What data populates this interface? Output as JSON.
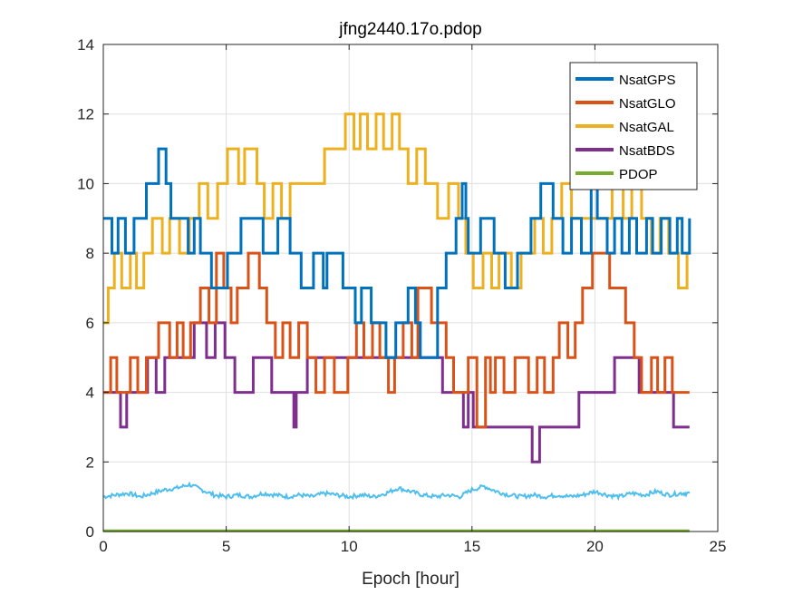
{
  "chart_data": {
    "type": "line",
    "title": "jfng2440.17o.pdop",
    "xlabel": "Epoch [hour]",
    "ylabel": "",
    "xlim": [
      0,
      25
    ],
    "ylim": [
      0,
      14
    ],
    "xticks": [
      0,
      5,
      10,
      15,
      20,
      25
    ],
    "yticks": [
      0,
      2,
      4,
      6,
      8,
      10,
      12,
      14
    ],
    "grid": true,
    "legend_position": "top-right",
    "series": [
      {
        "name": "NsatGPS",
        "color": "#0072BD",
        "style": "step",
        "x": [
          0,
          0.35,
          0.6,
          0.9,
          1.25,
          1.75,
          2.25,
          2.55,
          2.75,
          3.45,
          3.7,
          3.95,
          4.4,
          5.05,
          5.6,
          6.5,
          7.1,
          7.6,
          8.05,
          8.55,
          8.95,
          9.1,
          9.75,
          10.25,
          10.5,
          10.9,
          11.5,
          11.9,
          12.4,
          12.7,
          12.9,
          13.6,
          13.95,
          14.35,
          14.6,
          14.75,
          14.85,
          15.35,
          15.9,
          16.35,
          16.85,
          17.4,
          17.8,
          18.3,
          18.7,
          19.05,
          19.45,
          19.85,
          20.1,
          20.5,
          20.8,
          21.1,
          21.4,
          21.7,
          22.1,
          22.35,
          22.7,
          23.05,
          23.35,
          23.55,
          23.85
        ],
        "y": [
          9,
          8,
          9,
          8,
          9,
          10,
          11,
          10,
          9,
          8,
          9,
          8,
          7,
          8,
          9,
          8,
          9,
          8,
          7,
          8,
          7,
          8,
          7,
          6,
          7,
          6,
          5,
          6,
          7,
          6,
          5,
          7,
          8,
          9,
          10,
          9,
          8,
          9,
          8,
          7,
          8,
          9,
          10,
          9,
          8,
          9,
          8,
          10,
          9,
          8,
          9,
          8,
          9,
          8,
          9,
          8,
          9,
          8,
          9,
          8,
          9
        ]
      },
      {
        "name": "NsatGLO",
        "color": "#D95319",
        "style": "step",
        "x": [
          0,
          0.3,
          0.55,
          1.1,
          1.4,
          1.75,
          2.25,
          2.7,
          3.0,
          3.25,
          3.55,
          3.95,
          4.3,
          4.6,
          4.9,
          5.2,
          5.45,
          5.9,
          6.35,
          6.65,
          7.0,
          7.3,
          7.6,
          7.95,
          8.3,
          8.65,
          9.0,
          9.4,
          9.95,
          10.3,
          10.6,
          10.95,
          11.25,
          11.6,
          11.85,
          12.2,
          12.55,
          12.8,
          13.35,
          13.95,
          14.25,
          14.85,
          15.2,
          15.55,
          15.75,
          15.95,
          16.3,
          16.75,
          17.3,
          17.65,
          17.95,
          18.3,
          18.55,
          18.9,
          19.2,
          19.5,
          19.9,
          20.6,
          21.25,
          21.6,
          21.9,
          22.3,
          22.55,
          22.85,
          23.15,
          23.55
        ],
        "y": [
          4,
          5,
          4,
          5,
          4,
          5,
          6,
          5,
          6,
          5,
          6,
          7,
          6,
          8,
          7,
          6,
          7,
          8,
          7,
          6,
          5,
          6,
          5,
          6,
          5,
          4,
          5,
          4,
          5,
          6,
          5,
          6,
          5,
          4,
          5,
          6,
          5,
          7,
          6,
          5,
          4,
          5,
          3,
          5,
          4,
          5,
          4,
          5,
          4,
          5,
          4,
          5,
          6,
          5,
          6,
          7,
          8,
          7,
          6,
          5,
          4,
          5,
          4,
          5,
          4,
          4
        ]
      },
      {
        "name": "NsatGAL",
        "color": "#EDB120",
        "style": "step",
        "x": [
          0,
          0.2,
          0.45,
          0.75,
          1.1,
          1.35,
          1.65,
          2.0,
          2.4,
          2.7,
          3.1,
          3.5,
          3.9,
          4.25,
          4.65,
          5.05,
          5.5,
          5.75,
          6.25,
          6.55,
          6.9,
          7.25,
          7.6,
          7.95,
          8.4,
          9.0,
          9.55,
          9.85,
          10.2,
          10.45,
          10.75,
          11.1,
          11.4,
          11.75,
          12.05,
          12.4,
          12.75,
          13.1,
          13.6,
          14.05,
          14.45,
          14.75,
          15.05,
          15.45,
          15.8,
          16.1,
          16.6,
          17.0,
          17.55,
          17.9,
          18.25,
          18.65,
          19.05,
          19.6,
          20.2,
          20.7,
          21.15,
          21.5,
          21.9,
          22.3,
          22.65,
          23.0,
          23.4,
          23.75
        ],
        "y": [
          6,
          7,
          8,
          7,
          8,
          7,
          8,
          9,
          8,
          9,
          8,
          9,
          10,
          9,
          10,
          11,
          10,
          11,
          10,
          9,
          10,
          9,
          10,
          10,
          10,
          11,
          11,
          12,
          11,
          12,
          11,
          12,
          11,
          12,
          11,
          10,
          11,
          10,
          9,
          10,
          9,
          8,
          7,
          8,
          7,
          8,
          7,
          8,
          9,
          8,
          9,
          10,
          9,
          9,
          9,
          10,
          9,
          10,
          9,
          8,
          9,
          8,
          7,
          8
        ]
      },
      {
        "name": "NsatBDS",
        "color": "#7E2F8E",
        "style": "step",
        "x": [
          0,
          0.7,
          0.95,
          1.4,
          1.8,
          2.15,
          2.5,
          2.85,
          3.35,
          3.7,
          4.2,
          4.55,
          4.95,
          5.35,
          5.75,
          6.1,
          6.45,
          6.85,
          7.35,
          7.75,
          7.85,
          8.3,
          8.8,
          9.35,
          9.8,
          10.3,
          10.8,
          11.3,
          11.85,
          12.35,
          12.85,
          13.35,
          13.8,
          14.35,
          14.65,
          14.85,
          15.05,
          15.55,
          16.05,
          16.55,
          17.0,
          17.45,
          17.75,
          18.2,
          18.75,
          19.35,
          19.9,
          20.3,
          20.8,
          21.3,
          21.8,
          22.3,
          22.8,
          23.2,
          23.55
        ],
        "y": [
          4,
          3,
          4,
          4,
          5,
          4,
          5,
          5,
          5,
          6,
          5,
          6,
          5,
          4,
          4,
          5,
          5,
          4,
          4,
          3,
          4,
          5,
          5,
          5,
          5,
          5,
          5,
          5,
          5,
          5,
          5,
          5,
          4,
          4,
          3,
          4,
          3,
          3,
          3,
          3,
          3,
          2,
          3,
          3,
          3,
          4,
          4,
          4,
          5,
          5,
          4,
          4,
          4,
          3,
          3
        ]
      },
      {
        "name": "PDOP",
        "color": "#77AC30",
        "style": "line",
        "x": [
          0,
          23.85
        ],
        "y": [
          0.02,
          0.02
        ]
      },
      {
        "name": "",
        "color": "#4DBEEE",
        "style": "noisy",
        "x": [
          0,
          0.5,
          1.0,
          1.5,
          2.0,
          2.5,
          3.0,
          3.5,
          4.0,
          4.5,
          5.0,
          5.5,
          6.0,
          6.5,
          7.0,
          7.5,
          8.0,
          8.5,
          9.0,
          9.5,
          10.0,
          10.5,
          11.0,
          11.5,
          12.0,
          12.5,
          13.0,
          13.5,
          14.0,
          14.5,
          15.0,
          15.5,
          16.0,
          16.5,
          17.0,
          17.5,
          18.0,
          18.5,
          19.0,
          19.5,
          20.0,
          20.5,
          21.0,
          21.5,
          22.0,
          22.5,
          23.0,
          23.5,
          23.85
        ],
        "y": [
          1.0,
          1.05,
          1.1,
          1.0,
          1.1,
          1.2,
          1.25,
          1.35,
          1.2,
          1.05,
          1.0,
          1.05,
          1.0,
          1.1,
          1.05,
          1.0,
          1.05,
          1.0,
          1.1,
          1.05,
          1.0,
          1.05,
          1.0,
          1.1,
          1.25,
          1.15,
          1.05,
          1.0,
          1.05,
          1.0,
          1.2,
          1.3,
          1.15,
          1.05,
          1.0,
          1.05,
          1.0,
          1.05,
          1.0,
          1.05,
          1.15,
          1.05,
          1.0,
          1.1,
          1.05,
          1.15,
          1.05,
          1.1,
          1.1
        ]
      }
    ]
  }
}
